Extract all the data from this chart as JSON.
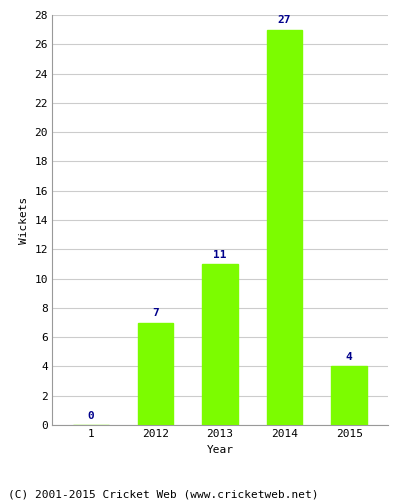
{
  "categories": [
    "1",
    "2012",
    "2013",
    "2014",
    "2015"
  ],
  "values": [
    0,
    7,
    11,
    27,
    4
  ],
  "bar_color": "#7CFC00",
  "bar_edge_color": "#7CFC00",
  "title": "",
  "xlabel": "Year",
  "ylabel": "Wickets",
  "ylim": [
    0,
    28
  ],
  "yticks": [
    0,
    2,
    4,
    6,
    8,
    10,
    12,
    14,
    16,
    18,
    20,
    22,
    24,
    26,
    28
  ],
  "annotation_color": "#00008B",
  "annotation_fontsize": 8,
  "axis_label_fontsize": 8,
  "tick_fontsize": 8,
  "footer_text": "(C) 2001-2015 Cricket Web (www.cricketweb.net)",
  "footer_fontsize": 8,
  "background_color": "#ffffff",
  "plot_background_color": "#ffffff",
  "grid_color": "#cccccc",
  "bar_width": 0.55
}
